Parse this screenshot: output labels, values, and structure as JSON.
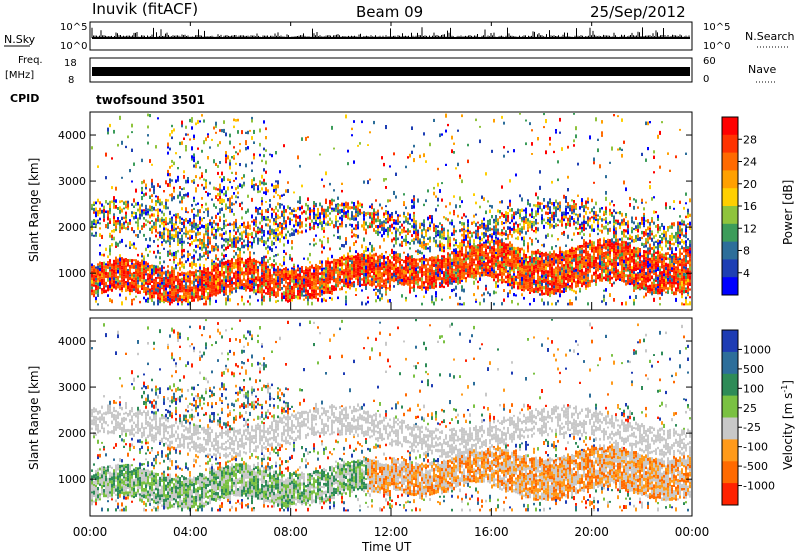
{
  "header": {
    "station": "Inuvik (fitACF)",
    "beam": "Beam 09",
    "date": "25/Sep/2012"
  },
  "top_panels": {
    "nsky_label": "N.Sky",
    "nsearch_label": "N.Search",
    "nsky_ticks": [
      "10^5",
      "10^0"
    ],
    "freq_label_line1": "Freq.",
    "freq_label_line2": "[MHz]",
    "freq_ticks": [
      "18",
      "8"
    ],
    "nave_label": "Nave",
    "nave_ticks": [
      "60",
      "0"
    ],
    "cpid_label": "CPID",
    "cpid_value": "twofsound 3501"
  },
  "chart_data": [
    {
      "type": "heatmap",
      "name": "power",
      "ylabel": "Slant Range [km]",
      "ylim": [
        200,
        4500
      ],
      "yticks": [
        "1000",
        "2000",
        "3000",
        "4000"
      ],
      "colorbar_label": "Power [dB]",
      "colorbar_ticks": [
        "28",
        "24",
        "20",
        "16",
        "12",
        "8",
        "4"
      ],
      "colorbar_colors": [
        "#ff0000",
        "#ff3300",
        "#ff6a00",
        "#ffa000",
        "#ffcf00",
        "#8fc43c",
        "#3c9c5a",
        "#2d6e9a",
        "#1e3fb4",
        "#0000ff"
      ]
    },
    {
      "type": "heatmap",
      "name": "velocity",
      "ylabel": "Slant Range [km]",
      "ylim": [
        200,
        4500
      ],
      "yticks": [
        "1000",
        "2000",
        "3000",
        "4000"
      ],
      "colorbar_label": "Velocity [m s",
      "colorbar_label_sup": "-1",
      "colorbar_ticks": [
        "1000",
        "500",
        "100",
        "25",
        "-25",
        "-100",
        "-500",
        "-1000"
      ],
      "colorbar_colors": [
        "#1e3cb4",
        "#2d6e9a",
        "#2e8b57",
        "#7ac142",
        "#c8c8c8",
        "#ff9a1a",
        "#ff6a00",
        "#ff2200"
      ]
    }
  ],
  "x_axis": {
    "ticks": [
      "00:00",
      "04:00",
      "08:00",
      "12:00",
      "16:00",
      "20:00",
      "00:00"
    ],
    "label": "Time UT"
  }
}
